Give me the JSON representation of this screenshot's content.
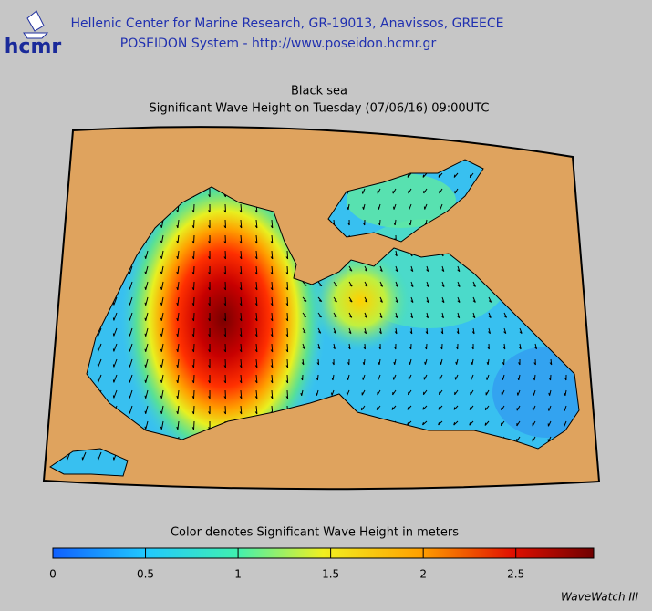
{
  "header": {
    "logo": "hcmr",
    "title": "Hellenic Center for Marine Research, GR-19013, Anavissos, GREECE",
    "subtitle": "POSEIDON System - http://www.poseidon.hcmr.gr"
  },
  "map": {
    "title": "Black sea",
    "subtitle": "Significant Wave Height on Tuesday (07/06/16) 09:00UTC"
  },
  "colorbar": {
    "label": "Color denotes Significant Wave Height in meters",
    "range": [
      0,
      2.92
    ],
    "ticks": [
      0,
      0.5,
      1,
      1.5,
      2,
      2.5
    ]
  },
  "footer": {
    "credit": "WaveWatch III"
  }
}
